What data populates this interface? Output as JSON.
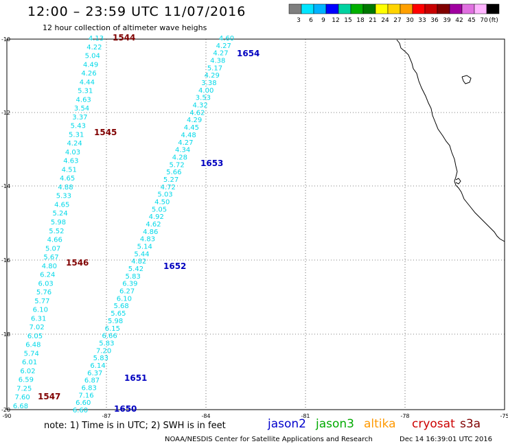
{
  "header": {
    "title": "12:00 – 23:59 UTC 11/07/2016",
    "subtitle": "12 hour collection of altimeter wave heighs"
  },
  "colorbar": {
    "colors": [
      "#7f7f7f",
      "#00e5ff",
      "#00b3ff",
      "#0000ff",
      "#00d2a0",
      "#00b000",
      "#007800",
      "#ffff00",
      "#ffd400",
      "#ffa000",
      "#ff0000",
      "#c80000",
      "#800000",
      "#a000a0",
      "#e070e0",
      "#ffb4ff",
      "#000000"
    ],
    "labels": [
      "3",
      "6",
      "9",
      "12",
      "15",
      "18",
      "21",
      "24",
      "27",
      "30",
      "33",
      "36",
      "39",
      "42",
      "45",
      "70",
      "(ft)"
    ]
  },
  "axes": {
    "lat_labels": [
      "-10",
      "-12",
      "-14",
      "-16",
      "-18",
      "-20"
    ],
    "lon_labels": [
      "-90",
      "-87",
      "-84",
      "-81",
      "-78",
      "-75"
    ]
  },
  "tracks": {
    "west_values": [
      "4.13",
      "4.22",
      "5.04",
      "4.49",
      "4.26",
      "4.44",
      "5.31",
      "4.63",
      "3.54",
      "3.37",
      "5.43",
      "5.31",
      "4.24",
      "4.03",
      "4.63",
      "4.51",
      "4.65",
      "4.88",
      "5.33",
      "4.65",
      "5.24",
      "5.98",
      "5.52",
      "4.66",
      "5.07",
      "5.67",
      "4.80",
      "6.24",
      "6.03",
      "5.76",
      "5.77",
      "6.10",
      "6.31",
      "7.02",
      "6.05",
      "6.48",
      "5.74",
      "6.01",
      "6.02",
      "6.59",
      "7.25",
      "7.60",
      "6.68"
    ],
    "east_values": [
      "4.60",
      "4.27",
      "4.27",
      "4.38",
      "5.17",
      "4.29",
      "3.38",
      "4.00",
      "3.53",
      "4.32",
      "4.62",
      "4.29",
      "4.45",
      "4.48",
      "4.27",
      "4.34",
      "4.28",
      "5.72",
      "5.66",
      "5.27",
      "4.72",
      "5.03",
      "4.50",
      "5.05",
      "4.92",
      "4.62",
      "4.86",
      "4.83",
      "5.14",
      "5.44",
      "4.82",
      "5.42",
      "5.83",
      "6.39",
      "6.27",
      "6.10",
      "5.68",
      "5.65",
      "5.98",
      "6.15",
      "6.66",
      "5.83",
      "7.20",
      "5.83",
      "6.14",
      "6.37",
      "6.87",
      "6.83",
      "7.16",
      "6.60",
      "6.60"
    ]
  },
  "time_labels": [
    {
      "text": "1544",
      "color": "#800000"
    },
    {
      "text": "1545",
      "color": "#800000"
    },
    {
      "text": "1546",
      "color": "#800000"
    },
    {
      "text": "1547",
      "color": "#800000"
    },
    {
      "text": "1654",
      "color": "#0000c0"
    },
    {
      "text": "1653",
      "color": "#0000c0"
    },
    {
      "text": "1652",
      "color": "#0000c0"
    },
    {
      "text": "1651",
      "color": "#0000c0"
    },
    {
      "text": "1650",
      "color": "#0000c0"
    }
  ],
  "footer": {
    "note": "note: 1) Time is in UTC; 2) SWH is in feet",
    "credit": "NOAA/NESDIS Center for Satellite Applications and Research",
    "timestamp": "Dec 14 16:39:01 UTC 2016"
  },
  "satellites": [
    {
      "name": "jason2",
      "color": "#0000cc"
    },
    {
      "name": "jason3",
      "color": "#00aa00"
    },
    {
      "name": "altika",
      "color": "#ff9900"
    },
    {
      "name": "cryosat",
      "color": "#cc0000"
    },
    {
      "name": "s3a",
      "color": "#800000"
    }
  ],
  "colors": {
    "values": "#00d8e8",
    "coast": "#000000"
  }
}
